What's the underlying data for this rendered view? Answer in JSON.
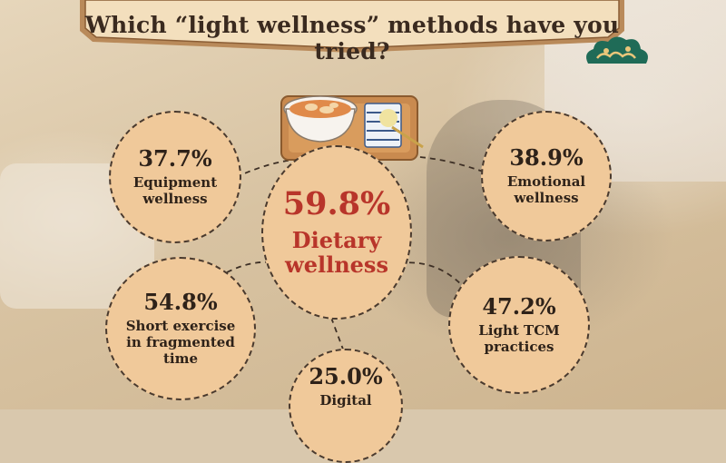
{
  "title": "Which “light wellness” methods have you tried?",
  "colors": {
    "bubble_fill": "#f0c99a",
    "bubble_border": "#4a3a2e",
    "highlight_text": "#b8352a",
    "banner_fill": "#f3dfbd",
    "cloud": "#1f6b57"
  },
  "chart_data": {
    "type": "bubble-infographic",
    "title": "Which “light wellness” methods have you tried?",
    "unit": "%",
    "items": [
      {
        "label": "Dietary wellness",
        "value": 59.8,
        "value_text": "59.8%",
        "line1": "Dietary",
        "line2": "wellness"
      },
      {
        "label": "Emotional wellness",
        "value": 38.9,
        "value_text": "38.9%",
        "line1": "Emotional",
        "line2": "wellness"
      },
      {
        "label": "Equipment wellness",
        "value": 37.7,
        "value_text": "37.7%",
        "line1": "Equipment",
        "line2": "wellness"
      },
      {
        "label": "Short exercise in fragmented time",
        "value": 54.8,
        "value_text": "54.8%",
        "line1": "Short exercise",
        "line2": "in fragmented time"
      },
      {
        "label": "Light TCM practices",
        "value": 47.2,
        "value_text": "47.2%",
        "line1": "Light TCM",
        "line2": "practices"
      },
      {
        "label": "Digital",
        "value": 25.0,
        "value_text": "25.0%",
        "line1": "Digital",
        "line2": ""
      }
    ]
  }
}
